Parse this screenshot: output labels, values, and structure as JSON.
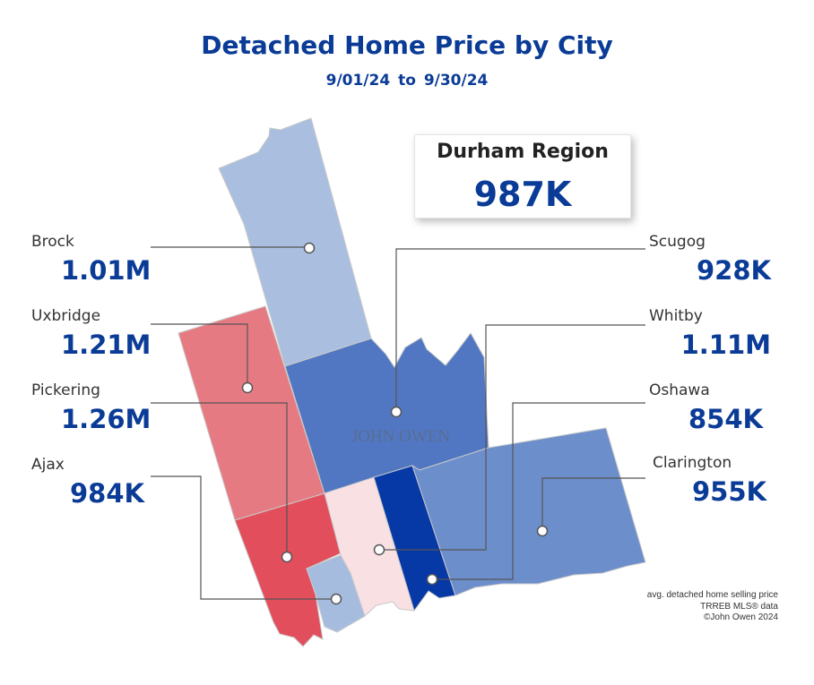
{
  "title": "Detached Home Price by City",
  "date_range": "9/01/24  to  9/30/24",
  "region": {
    "name": "Durham Region",
    "value": "987K"
  },
  "watermark": "JOHN OWEN",
  "cities": {
    "brock": {
      "name": "Brock",
      "price": "1.01M",
      "color": "#aabfe0"
    },
    "uxbridge": {
      "name": "Uxbridge",
      "price": "1.21M",
      "color": "#e67a82"
    },
    "pickering": {
      "name": "Pickering",
      "price": "1.26M",
      "color": "#e24e5c"
    },
    "ajax": {
      "name": "Ajax",
      "price": "984K",
      "color": "#a6bcdf"
    },
    "scugog": {
      "name": "Scugog",
      "price": "928K",
      "color": "#5277c2"
    },
    "whitby": {
      "name": "Whitby",
      "price": "1.11M",
      "color": "#f8e0e3"
    },
    "oshawa": {
      "name": "Oshawa",
      "price": "854K",
      "color": "#0638a6"
    },
    "clarington": {
      "name": "Clarington",
      "price": "955K",
      "color": "#6c8ecb"
    }
  },
  "footnote": {
    "line1": "avg. detached home selling price",
    "line2": "TRREB MLS® data",
    "line3": "©John Owen 2024"
  }
}
